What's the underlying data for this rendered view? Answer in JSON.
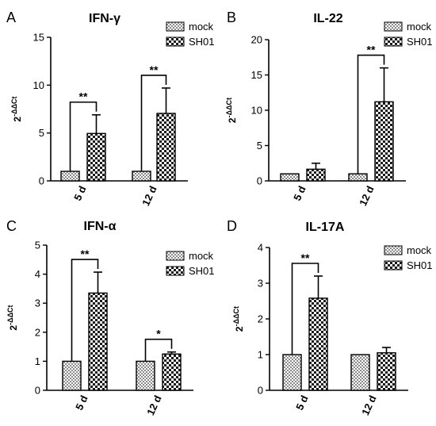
{
  "chart_data": [
    {
      "panel": "A",
      "title": "IFN-γ",
      "type": "bar",
      "ylabel": "2-ΔΔCt",
      "ylim": [
        0,
        15
      ],
      "yticks": [
        0,
        5,
        10,
        15
      ],
      "categories": [
        "5 d",
        "12 d"
      ],
      "series": [
        {
          "name": "mock",
          "values": [
            1,
            1
          ],
          "errors": [
            0,
            0
          ]
        },
        {
          "name": "SH01",
          "values": [
            4.95,
            7.05
          ],
          "errors": [
            1.95,
            2.65
          ]
        }
      ],
      "significance": [
        {
          "category": "5 d",
          "label": "**"
        },
        {
          "category": "12 d",
          "label": "**"
        }
      ],
      "legend": "top-right"
    },
    {
      "panel": "B",
      "title": "IL-22",
      "type": "bar",
      "ylabel": "2-ΔΔCt",
      "ylim": [
        0,
        20
      ],
      "yticks": [
        0,
        5,
        10,
        15,
        20
      ],
      "categories": [
        "5 d",
        "12 d"
      ],
      "series": [
        {
          "name": "mock",
          "values": [
            1,
            1
          ],
          "errors": [
            0,
            0
          ]
        },
        {
          "name": "SH01",
          "values": [
            1.65,
            11.2
          ],
          "errors": [
            0.85,
            4.8
          ]
        }
      ],
      "significance": [
        {
          "category": "12 d",
          "label": "**"
        }
      ],
      "legend": "top-right"
    },
    {
      "panel": "C",
      "title": "IFN-α",
      "type": "bar",
      "ylabel": "2-ΔΔCt",
      "ylim": [
        0,
        5
      ],
      "yticks": [
        0,
        1,
        2,
        3,
        4,
        5
      ],
      "categories": [
        "5 d",
        "12 d"
      ],
      "series": [
        {
          "name": "mock",
          "values": [
            1,
            1
          ],
          "errors": [
            0,
            0
          ]
        },
        {
          "name": "SH01",
          "values": [
            3.35,
            1.25
          ],
          "errors": [
            0.72,
            0.07
          ]
        }
      ],
      "significance": [
        {
          "category": "5 d",
          "label": "**"
        },
        {
          "category": "12 d",
          "label": "*"
        }
      ],
      "legend": "top-right"
    },
    {
      "panel": "D",
      "title": "IL-17A",
      "type": "bar",
      "ylabel": "2-ΔΔCt",
      "ylim": [
        0,
        4
      ],
      "yticks": [
        0,
        1,
        2,
        3,
        4
      ],
      "categories": [
        "5 d",
        "12 d"
      ],
      "series": [
        {
          "name": "mock",
          "values": [
            1,
            1
          ],
          "errors": [
            0,
            0
          ]
        },
        {
          "name": "SH01",
          "values": [
            2.58,
            1.05
          ],
          "errors": [
            0.62,
            0.15
          ]
        }
      ],
      "significance": [
        {
          "category": "5 d",
          "label": "**"
        }
      ],
      "legend": "top-right"
    }
  ],
  "ylabel_parts": {
    "base": "2",
    "exponent": "-ΔΔCt"
  }
}
